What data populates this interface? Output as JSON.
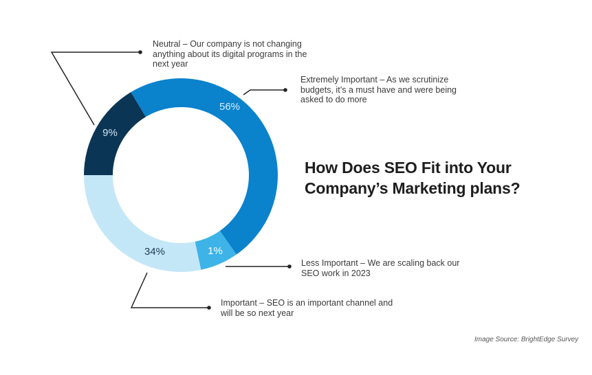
{
  "chart_data": {
    "type": "pie",
    "subtype": "donut",
    "title": [
      "How Does SEO Fit into Your",
      "Company’s Marketing plans?"
    ],
    "slices": [
      {
        "label": "Neutral",
        "value": 9,
        "value_label": "9%",
        "color": "#0b3554",
        "description": "Neutral – Our company is not changing anything about its digital programs in the next year"
      },
      {
        "label": "Extremely Important",
        "value": 56,
        "value_label": "56%",
        "color": "#0a82cc",
        "description": "Extremely Important – As we scrutinize budgets, it’s a must have and were being asked to do more"
      },
      {
        "label": "Less Important",
        "value": 1,
        "value_label": "1%",
        "color": "#3db3e8",
        "description": "Less Important – We are scaling back our SEO work in 2023"
      },
      {
        "label": "Important",
        "value": 34,
        "value_label": "34%",
        "color": "#c4e7f8",
        "description": "Important – SEO is an important channel and will be so next year"
      }
    ],
    "source": "Image Source: BrightEdge Survey"
  }
}
